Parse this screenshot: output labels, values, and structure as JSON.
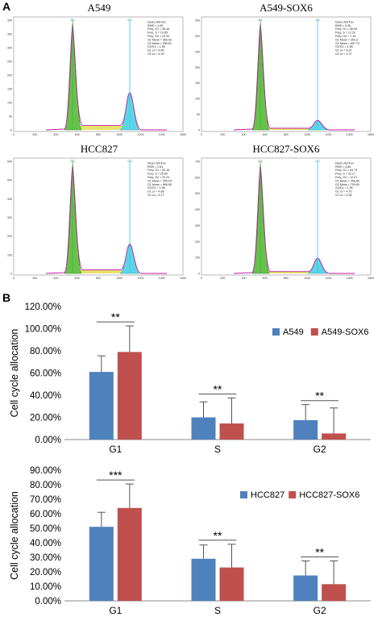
{
  "panels": {
    "a": "A",
    "b": "B"
  },
  "flow_panels": [
    {
      "title": "A549",
      "peak_labels": [
        "G1",
        "G2"
      ],
      "y_ticks": [
        "400",
        "350",
        "300",
        "250",
        "200",
        "150",
        "100",
        "50",
        "0"
      ],
      "x_ticks": [
        "0",
        "200",
        "400",
        "600",
        "800",
        "1000",
        "1200",
        "1400",
        "1600"
      ],
      "stats": [
        "Dean-Jett-Fox",
        "RMS = 1.09",
        "Freq. G1 = 56.16",
        "Freq. S = 19.85",
        "Freq. G2 = 22.94",
        "G1 Mean = 350.63",
        "G2 Mean = 695.61",
        "G2/G1 = 1.98",
        "G1 cv = 6.46",
        "G2 cv = 4.39"
      ],
      "g2_peak_rel": 0.35
    },
    {
      "title": "A549-SOX6",
      "peak_labels": [
        "G1",
        "G2"
      ],
      "y_ticks": [
        "350",
        "300",
        "250",
        "200",
        "150",
        "100",
        "50",
        "0"
      ],
      "x_ticks": [
        "0",
        "200",
        "400",
        "600",
        "800",
        "1000",
        "1200",
        "1400",
        "1600"
      ],
      "stats": [
        "Dean-Jett-Fox",
        "RMS = 0.96",
        "Freq. G1 = 80.64",
        "Freq. S = 12.20",
        "Freq. G2 = 7.16",
        "G1 Mean = 352.6",
        "G2 Mean = 697.74",
        "G2/G1 = 1.98",
        "G1 cv = 5.02",
        "G2 cv = 4.37"
      ],
      "g2_peak_rel": 0.09
    },
    {
      "title": "HCC827",
      "peak_labels": [
        "G1",
        "G2"
      ],
      "y_ticks": [
        "600",
        "500",
        "400",
        "300",
        "200",
        "100",
        "0"
      ],
      "x_ticks": [
        "0",
        "200",
        "400",
        "600",
        "800",
        "1000",
        "1200",
        "1400",
        "1600"
      ],
      "stats": [
        "Dean-Jett-Fox",
        "RMS = 2.64",
        "Freq. G1 = 52.16",
        "Freq. S = 25.60",
        "Freq. G2 = 22.24",
        "G1 Mean = 355.04",
        "G2 Mean = 696.65",
        "G2/G1 = 1.96",
        "G1 cv = 4.68",
        "G2 cv = 4.27"
      ],
      "g2_peak_rel": 0.27
    },
    {
      "title": "HCC827-SOX6",
      "peak_labels": [
        "G1",
        "G2"
      ],
      "y_ticks": [
        "700",
        "600",
        "500",
        "400",
        "300",
        "200",
        "100",
        "0"
      ],
      "x_ticks": [
        "0",
        "200",
        "400",
        "600",
        "800",
        "1000",
        "1200",
        "1400",
        "1600"
      ],
      "stats": [
        "Dean-Jett-Fox",
        "RMS = 4.66",
        "Freq. G1 = 64.73",
        "Freq. S = 22.17",
        "Freq. G2 = 12.01",
        "G1 Mean = 358.86",
        "G2 Mean = 700.69",
        "G2/G1 = 1.95",
        "G1 cv = 4.76",
        "G2 cv = 4.36"
      ],
      "g2_peak_rel": 0.14
    }
  ],
  "chart_data": [
    {
      "type": "bar",
      "categories": [
        "G1",
        "S",
        "G2"
      ],
      "series": [
        {
          "name": "A549",
          "values": [
            61.0,
            20.0,
            17.5
          ],
          "errors": [
            14.5,
            14.0,
            14.0
          ],
          "color": "#4f81bd"
        },
        {
          "name": "A549-SOX6",
          "values": [
            79.0,
            14.5,
            5.5
          ],
          "errors": [
            23.5,
            23.0,
            23.0
          ],
          "color": "#c0504d"
        }
      ],
      "significance": [
        "**",
        "**",
        "**"
      ],
      "ylabel": "Cell cycle allocation",
      "ylim": [
        0,
        120
      ],
      "y_ticks": [
        "0.00%",
        "20.00%",
        "40.00%",
        "60.00%",
        "80.00%",
        "100.00%",
        "120.00%"
      ],
      "legend_position": "top-right"
    },
    {
      "type": "bar",
      "categories": [
        "G1",
        "S",
        "G2"
      ],
      "series": [
        {
          "name": "HCC827",
          "values": [
            51.0,
            29.0,
            17.5
          ],
          "errors": [
            10.0,
            9.5,
            10.0
          ],
          "color": "#4f81bd"
        },
        {
          "name": "HCC827-SOX6",
          "values": [
            64.0,
            23.0,
            11.5
          ],
          "errors": [
            16.5,
            16.0,
            16.0
          ],
          "color": "#c0504d"
        }
      ],
      "significance": [
        "***",
        "**",
        "**"
      ],
      "ylabel": "Cell cycle allocation",
      "ylim": [
        0,
        90
      ],
      "y_ticks": [
        "0.00%",
        "10.00%",
        "20.00%",
        "30.00%",
        "40.00%",
        "50.00%",
        "60.00%",
        "70.00%",
        "80.00%",
        "90.00%"
      ],
      "legend_position": "top-right"
    }
  ]
}
